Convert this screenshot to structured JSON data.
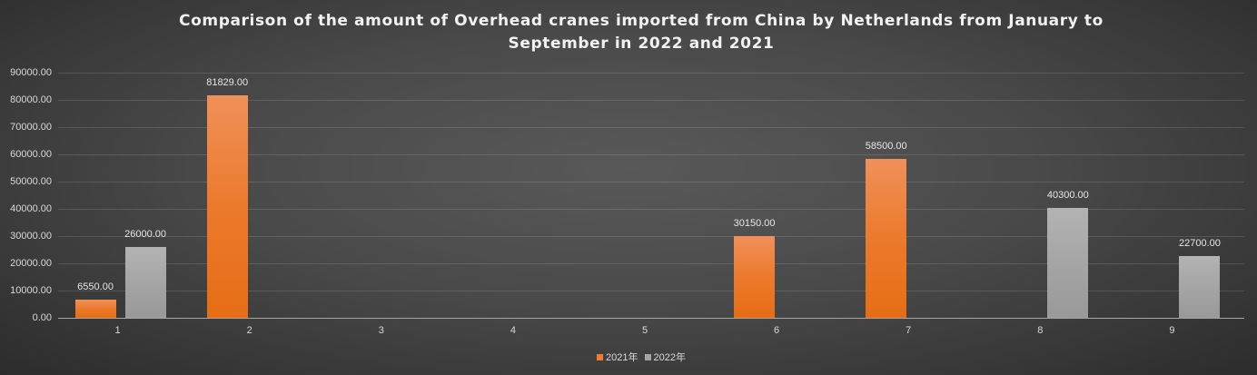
{
  "title_line1": "Comparison of the amount of Overhead cranes imported from China by Netherlands from January to",
  "title_line2": "September in 2022 and 2021",
  "legend": [
    {
      "label": "2021年",
      "color": "#ed7d31"
    },
    {
      "label": "2022年",
      "color": "#a5a5a5"
    }
  ],
  "y_ticks": [
    "0.00",
    "10000.00",
    "20000.00",
    "30000.00",
    "40000.00",
    "50000.00",
    "60000.00",
    "70000.00",
    "80000.00",
    "90000.00"
  ],
  "x_ticks": [
    "1",
    "2",
    "3",
    "4",
    "5",
    "6",
    "7",
    "8",
    "9"
  ],
  "chart_data": {
    "type": "bar",
    "title": "Comparison of the amount of Overhead cranes imported from China by Netherlands from January to September in 2022 and 2021",
    "xlabel": "",
    "ylabel": "",
    "categories": [
      "1",
      "2",
      "3",
      "4",
      "5",
      "6",
      "7",
      "8",
      "9"
    ],
    "series": [
      {
        "name": "2021年",
        "color": "#ed7d31",
        "values": [
          6550,
          81829,
          0,
          0,
          0,
          30150,
          58500,
          0,
          0
        ]
      },
      {
        "name": "2022年",
        "color": "#a5a5a5",
        "values": [
          26000,
          0,
          0,
          0,
          0,
          0,
          0,
          40300,
          22700
        ]
      }
    ],
    "data_labels": {
      "2021年": [
        "6550.00",
        "81829.00",
        null,
        null,
        null,
        "30150.00",
        "58500.00",
        null,
        null
      ],
      "2022年": [
        "26000.00",
        null,
        null,
        null,
        null,
        null,
        null,
        "40300.00",
        "22700.00"
      ]
    },
    "ylim": [
      0,
      90000
    ],
    "y_tick_step": 10000,
    "grid": true,
    "legend_position": "bottom"
  }
}
